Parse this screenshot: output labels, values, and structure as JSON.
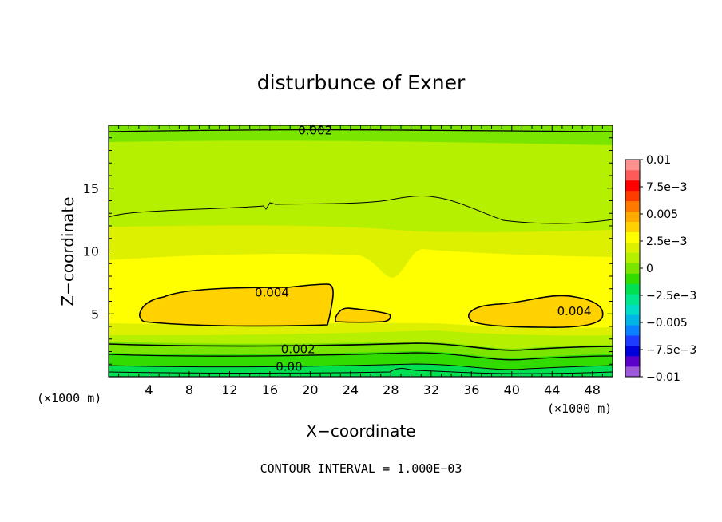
{
  "chart_data": {
    "type": "heatmap",
    "title": "disturbunce of Exner",
    "xlabel": "X−coordinate",
    "ylabel": "Z−coordinate",
    "x_unit_left": "(×1000 m)",
    "x_unit_right": "(×1000 m)",
    "xlim": [
      0,
      50
    ],
    "ylim": [
      0,
      20
    ],
    "x_ticks": [
      "4",
      "8",
      "12",
      "16",
      "20",
      "24",
      "28",
      "32",
      "36",
      "40",
      "44",
      "48"
    ],
    "x_tick_values": [
      4,
      8,
      12,
      16,
      20,
      24,
      28,
      32,
      36,
      40,
      44,
      48
    ],
    "y_ticks": [
      "5",
      "10",
      "15"
    ],
    "y_tick_values": [
      5,
      10,
      15
    ],
    "note": "CONTOUR INTERVAL = 1.000E−03",
    "colorbar": {
      "labels": [
        "0.01",
        "7.5e−3",
        "0.005",
        "2.5e−3",
        "0",
        "−2.5e−3",
        "−0.005",
        "−7.5e−3",
        "−0.01"
      ],
      "label_values": [
        0.01,
        0.0075,
        0.005,
        0.0025,
        0,
        -0.0025,
        -0.005,
        -0.0075,
        -0.01
      ],
      "colors": [
        "#9c58d8",
        "#5a00c8",
        "#0000dc",
        "#1e3cff",
        "#0a82ff",
        "#00b4e6",
        "#00dcc8",
        "#00e68c",
        "#00e050",
        "#32dc00",
        "#7ae600",
        "#b4f000",
        "#dcf000",
        "#ffff00",
        "#ffd200",
        "#ffaa00",
        "#ff7800",
        "#ff3c00",
        "#ff0000",
        "#ff5a5a",
        "#ff9090"
      ]
    },
    "contour_labels": [
      {
        "text": "0.002",
        "x": 20.5,
        "z": 19.6
      },
      {
        "text": "0.004",
        "x": 16.2,
        "z": 6.7
      },
      {
        "text": "0.004",
        "x": 46.2,
        "z": 5.2
      },
      {
        "text": "0.002",
        "x": 18.8,
        "z": 2.2
      },
      {
        "text": "0.00",
        "x": 17.9,
        "z": 0.8
      }
    ]
  }
}
